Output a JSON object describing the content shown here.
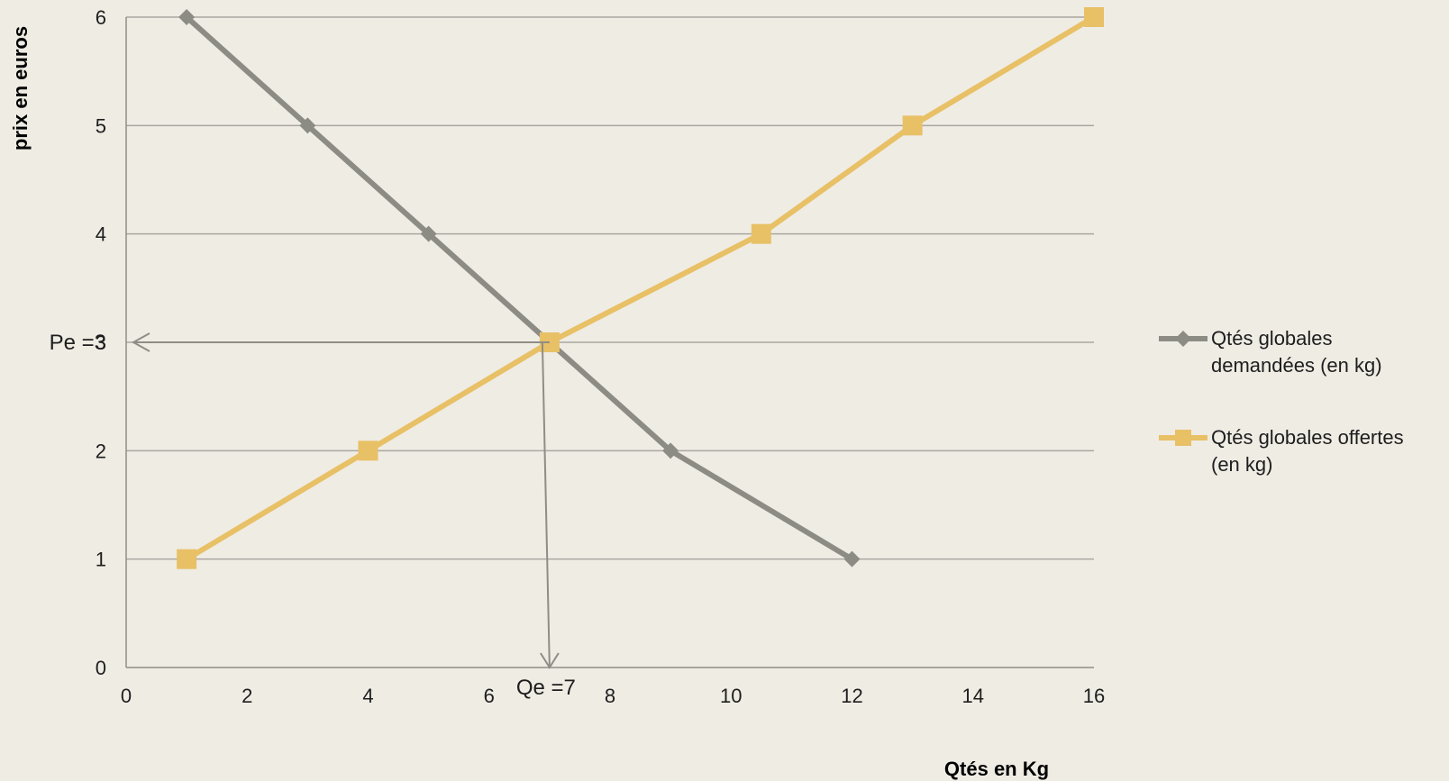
{
  "chart_data": {
    "type": "line",
    "xlabel": "Qtés en Kg",
    "ylabel": "prix en euros",
    "xlim": [
      0,
      16
    ],
    "ylim": [
      0,
      6
    ],
    "x_ticks": [
      "0",
      "2",
      "4",
      "6",
      "8",
      "10",
      "12",
      "14",
      "16"
    ],
    "y_ticks": [
      "0",
      "1",
      "2",
      "3",
      "4",
      "5",
      "6"
    ],
    "grid": "horizontal",
    "legend_position": "right",
    "series": [
      {
        "name_lines": [
          "Qtés globales",
          "demandées (en kg)"
        ],
        "color": "#8c8b84",
        "marker": "diamond",
        "points": [
          [
            1,
            6
          ],
          [
            3,
            5
          ],
          [
            5,
            4
          ],
          [
            7,
            3
          ],
          [
            9,
            2
          ],
          [
            12,
            1
          ]
        ]
      },
      {
        "name_lines": [
          "Qtés globales offertes",
          "(en kg)"
        ],
        "color": "#e8c066",
        "marker": "square",
        "points": [
          [
            1,
            1
          ],
          [
            4,
            2
          ],
          [
            7,
            3
          ],
          [
            10.5,
            4
          ],
          [
            13,
            5
          ],
          [
            16,
            6
          ]
        ]
      }
    ],
    "annotations": {
      "price_label": "Pe =3",
      "quantity_label": "Qe =7",
      "equilibrium": [
        7,
        3
      ]
    }
  }
}
